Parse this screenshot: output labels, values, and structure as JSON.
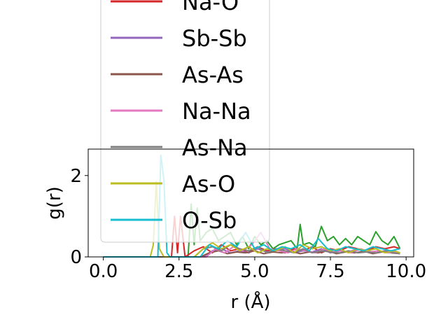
{
  "chart_data": {
    "type": "line",
    "xlabel": "r (Å)",
    "ylabel": "g(r)",
    "xlim": [
      -0.5,
      10.25
    ],
    "ylim": [
      0,
      2.65
    ],
    "xticks": [
      0.0,
      2.5,
      5.0,
      7.5,
      10.0
    ],
    "xtick_labels": [
      "0.0",
      "2.5",
      "5.0",
      "7.5",
      "10.0"
    ],
    "yticks": [
      0,
      2
    ],
    "ytick_labels": [
      "0",
      "2"
    ],
    "legend_position": "upper-left, overflowing above the plot area",
    "legend_entries": [
      {
        "label": "Na-O",
        "color": "#d62728"
      },
      {
        "label": "Sb-Sb",
        "color": "#9467bd"
      },
      {
        "label": "As-As",
        "color": "#8c564b"
      },
      {
        "label": "Na-Na",
        "color": "#e377c2"
      },
      {
        "label": "As-Na",
        "color": "#7f7f7f"
      },
      {
        "label": "As-O",
        "color": "#bcbd22"
      },
      {
        "label": "O-Sb",
        "color": "#17becf"
      }
    ],
    "series": [
      {
        "color": "#2ca02c",
        "x": [
          0,
          2.8,
          2.9,
          3.0,
          3.1,
          3.2,
          3.4,
          3.6,
          3.8,
          4.0,
          4.2,
          4.4,
          4.6,
          4.8,
          5.0,
          5.2,
          5.4,
          5.6,
          5.8,
          6.0,
          6.2,
          6.4,
          6.5,
          6.6,
          6.8,
          7.0,
          7.2,
          7.4,
          7.6,
          7.8,
          8.0,
          8.2,
          8.4,
          8.6,
          8.8,
          9.0,
          9.2,
          9.4,
          9.6,
          9.8
        ],
        "y": [
          0,
          0,
          1.3,
          0.3,
          1.2,
          0.4,
          0.6,
          0.7,
          0.4,
          0.5,
          0.6,
          0.3,
          0.5,
          0.2,
          0.5,
          0.3,
          0.4,
          0.2,
          0.3,
          0.35,
          0.4,
          0.2,
          0.8,
          0.3,
          0.35,
          0.25,
          0.75,
          0.4,
          0.5,
          0.3,
          0.45,
          0.3,
          0.5,
          0.4,
          0.3,
          0.62,
          0.4,
          0.3,
          0.5,
          0.2
        ]
      },
      {
        "color": "#d62728",
        "x": [
          0,
          2.25,
          2.35,
          2.45,
          2.55,
          2.7,
          3.0,
          3.3,
          3.6,
          3.9,
          4.2,
          4.5,
          4.8,
          5.1,
          5.4,
          5.7,
          6.0,
          6.3,
          6.6,
          6.9,
          7.2,
          7.5,
          7.8,
          8.1,
          8.4,
          8.7,
          9.0,
          9.3,
          9.6,
          9.8
        ],
        "y": [
          0,
          0,
          1.0,
          0.1,
          1.0,
          0,
          0.15,
          0.25,
          0.1,
          0.3,
          0.15,
          0.2,
          0.1,
          0.25,
          0.15,
          0.2,
          0.1,
          0.2,
          0.15,
          0.25,
          0.1,
          0.2,
          0.15,
          0.25,
          0.2,
          0.15,
          0.25,
          0.2,
          0.25,
          0.2
        ]
      },
      {
        "color": "#9467bd",
        "x": [
          0,
          3.3,
          3.6,
          3.9,
          4.2,
          4.5,
          4.8,
          5.1,
          5.4,
          5.7,
          6.0,
          6.3,
          6.6,
          6.9,
          7.2,
          7.5,
          7.8,
          8.1,
          8.4,
          8.7,
          9.0,
          9.3,
          9.6,
          9.8
        ],
        "y": [
          0,
          0,
          0.15,
          0.2,
          0.1,
          0.15,
          0.1,
          0.2,
          0.12,
          0.15,
          0.2,
          0.1,
          0.15,
          0.12,
          0.2,
          0.1,
          0.15,
          0.12,
          0.2,
          0.15,
          0.1,
          0.15,
          0.12,
          0.1
        ]
      },
      {
        "color": "#8c564b",
        "x": [
          0,
          3.2,
          3.5,
          3.8,
          4.1,
          4.4,
          4.7,
          5.0,
          5.3,
          5.6,
          5.9,
          6.2,
          6.5,
          6.8,
          7.1,
          7.4,
          7.7,
          8.0,
          8.3,
          8.6,
          8.9,
          9.2,
          9.5,
          9.8
        ],
        "y": [
          0,
          0,
          0.1,
          0.15,
          0.08,
          0.12,
          0.1,
          0.15,
          0.08,
          0.12,
          0.1,
          0.14,
          0.08,
          0.12,
          0.1,
          0.15,
          0.08,
          0.12,
          0.1,
          0.14,
          0.08,
          0.12,
          0.1,
          0.08
        ]
      },
      {
        "color": "#e377c2",
        "x": [
          0,
          3.4,
          3.7,
          4.0,
          4.3,
          4.6,
          4.9,
          5.2,
          5.5,
          5.8,
          6.1,
          6.4,
          6.7,
          7.0,
          7.3,
          7.6,
          7.9,
          8.2,
          8.5,
          8.8,
          9.1,
          9.4,
          9.7,
          9.8
        ],
        "y": [
          0,
          0,
          0.2,
          0.1,
          0.25,
          0.15,
          0.3,
          0.6,
          0.2,
          0.15,
          0.1,
          0.2,
          0.15,
          0.1,
          0.2,
          0.12,
          0.15,
          0.1,
          0.2,
          0.12,
          0.15,
          0.1,
          0.12,
          0.1
        ]
      },
      {
        "color": "#7f7f7f",
        "x": [
          0,
          3.0,
          3.3,
          3.6,
          3.9,
          4.2,
          4.5,
          4.8,
          5.1,
          5.4,
          5.7,
          6.0,
          6.3,
          6.6,
          6.9,
          7.2,
          7.5,
          7.8,
          8.1,
          8.4,
          8.7,
          9.0,
          9.3,
          9.6,
          9.8
        ],
        "y": [
          0,
          0,
          0.2,
          0.25,
          0.15,
          0.3,
          0.2,
          0.15,
          0.25,
          0.1,
          0.2,
          0.15,
          0.1,
          0.2,
          0.1,
          0.15,
          0.12,
          0.1,
          0.15,
          0.1,
          0.12,
          0.1,
          0.15,
          0.1,
          0.08
        ]
      },
      {
        "color": "#bcbd22",
        "x": [
          0,
          1.55,
          1.65,
          1.75,
          1.85,
          2.0,
          3.0,
          3.3,
          3.6,
          3.9,
          4.2,
          4.5,
          4.8,
          5.1,
          5.4,
          5.7,
          6.0,
          6.3,
          6.6,
          6.9,
          7.2,
          7.5,
          7.8,
          8.1,
          8.4,
          8.7,
          9.0,
          9.3,
          9.6,
          9.8
        ],
        "y": [
          0,
          0,
          0.3,
          1.85,
          0.2,
          0,
          0,
          0.2,
          0.35,
          0.2,
          0.3,
          0.15,
          0.25,
          0.1,
          0.2,
          0.15,
          0.25,
          0.1,
          0.3,
          0.2,
          0.25,
          0.15,
          0.2,
          0.1,
          0.2,
          0.15,
          0.2,
          0.1,
          0.15,
          0.1
        ]
      },
      {
        "color": "#17becf",
        "x": [
          0,
          1.8,
          1.9,
          2.0,
          2.1,
          2.2,
          3.2,
          3.5,
          3.8,
          4.1,
          4.4,
          4.7,
          5.0,
          5.3,
          5.6,
          5.9,
          6.2,
          6.5,
          6.8,
          7.1,
          7.4,
          7.7,
          8.0,
          8.3,
          8.6,
          8.9,
          9.2,
          9.5,
          9.8
        ],
        "y": [
          0,
          0,
          2.5,
          1.9,
          0.1,
          0,
          0,
          0.3,
          0.2,
          0.4,
          0.25,
          0.6,
          0.2,
          0.3,
          0.15,
          0.25,
          0.2,
          0.3,
          0.15,
          0.45,
          0.2,
          0.15,
          0.25,
          0.2,
          0.15,
          0.25,
          0.2,
          0.15,
          0.2
        ]
      }
    ]
  }
}
